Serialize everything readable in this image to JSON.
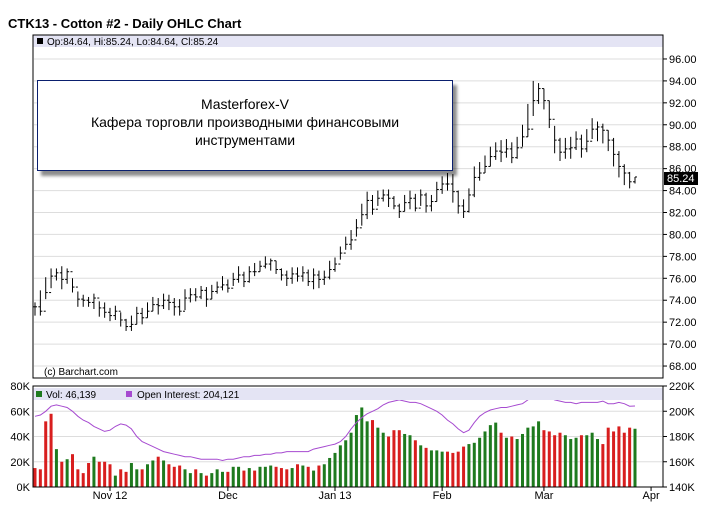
{
  "header": {
    "title": "CTK13 - Cotton #2 - Daily OHLC Chart",
    "ohlc_label": "Op:84.64, Hi:85.24, Lo:84.64, Cl:85.24",
    "last_price": "85.24"
  },
  "watermark": {
    "line1": "Masterforex-V",
    "line2": "Кафера торговли производными финансовыми",
    "line3": "инструментами"
  },
  "credit": "(c) Barchart.com",
  "lower_panel": {
    "volume_label": "Vol: 46,139",
    "oi_label": "Open Interest: 204,121"
  },
  "colors": {
    "header_bg": "#e4e4f4",
    "grid": "#dddddd",
    "up_volume": "#1e7a1e",
    "down_volume": "#d81e1e",
    "open_interest": "#a64ad0",
    "last_price_box": "#000000",
    "note_border": "#0a1f6e"
  },
  "chart_data": [
    {
      "type": "ohlc",
      "title": "CTK13 - Cotton #2 - Daily OHLC Chart",
      "ylim": [
        67,
        97
      ],
      "y_ticks": [
        "68.00",
        "70.00",
        "72.00",
        "74.00",
        "76.00",
        "78.00",
        "80.00",
        "82.00",
        "84.00",
        "86.00",
        "88.00",
        "90.00",
        "92.00",
        "94.00",
        "96.00"
      ],
      "x_ticks": [
        {
          "label": "Nov 12",
          "index": 14
        },
        {
          "label": "Dec",
          "index": 36
        },
        {
          "label": "Jan 13",
          "index": 56
        },
        {
          "label": "Feb",
          "index": 76
        },
        {
          "label": "Mar",
          "index": 95
        },
        {
          "label": "Apr",
          "index": 115
        }
      ],
      "close": [
        73.4,
        73.0,
        74.7,
        76.2,
        76.5,
        75.9,
        76.6,
        75.2,
        74.1,
        74.0,
        73.8,
        74.2,
        73.3,
        72.9,
        72.6,
        73.0,
        72.2,
        71.6,
        71.8,
        72.8,
        72.4,
        73.0,
        73.6,
        73.5,
        74.0,
        73.8,
        73.4,
        73.0,
        74.2,
        74.5,
        74.3,
        74.9,
        74.1,
        74.8,
        75.2,
        75.4,
        75.1,
        75.9,
        76.3,
        75.7,
        76.6,
        76.6,
        77.1,
        77.3,
        77.6,
        76.8,
        76.3,
        76.0,
        76.4,
        76.2,
        76.5,
        75.7,
        76.3,
        75.9,
        76.1,
        76.8,
        77.3,
        78.3,
        79.1,
        79.5,
        80.6,
        81.8,
        83.1,
        82.3,
        83.3,
        83.6,
        83.3,
        82.6,
        82.1,
        82.9,
        83.3,
        82.4,
        83.6,
        82.6,
        83.0,
        84.1,
        84.6,
        84.6,
        83.9,
        82.6,
        82.1,
        83.6,
        85.2,
        85.6,
        86.2,
        87.1,
        87.6,
        87.5,
        87.8,
        87.0,
        87.9,
        88.9,
        89.6,
        92.2,
        93.3,
        92.2,
        90.5,
        88.6,
        87.5,
        87.8,
        87.9,
        88.7,
        87.8,
        88.5,
        89.6,
        89.8,
        89.5,
        88.6,
        87.3,
        86.2,
        85.6,
        84.8,
        85.24
      ],
      "high": [
        73.8,
        74.9,
        76.1,
        76.9,
        76.9,
        77.1,
        76.9,
        76.0,
        74.8,
        74.5,
        74.3,
        74.6,
        73.9,
        73.8,
        73.3,
        73.5,
        72.9,
        72.3,
        72.6,
        73.4,
        73.3,
        73.8,
        74.3,
        74.2,
        74.6,
        74.5,
        74.2,
        74.1,
        75.0,
        75.1,
        75.1,
        75.3,
        75.2,
        75.4,
        75.7,
        76.2,
        75.9,
        76.5,
        77.1,
        76.6,
        77.1,
        77.4,
        77.6,
        78.0,
        77.8,
        77.6,
        76.9,
        76.7,
        77.0,
        77.0,
        77.1,
        76.8,
        76.9,
        76.7,
        76.7,
        77.6,
        77.9,
        78.9,
        79.8,
        80.4,
        81.4,
        82.8,
        83.9,
        83.6,
        84.0,
        84.1,
        84.1,
        83.5,
        82.8,
        83.6,
        84.0,
        83.7,
        84.1,
        83.8,
        83.6,
        84.8,
        85.3,
        85.6,
        85.5,
        84.0,
        83.2,
        84.2,
        86.2,
        86.6,
        87.2,
        88.0,
        88.4,
        88.6,
        88.7,
        88.4,
        88.9,
        90.0,
        91.9,
        94.0,
        93.8,
        93.3,
        92.2,
        89.9,
        88.8,
        88.8,
        88.9,
        89.4,
        89.1,
        89.6,
        90.6,
        90.3,
        90.1,
        89.5,
        88.8,
        87.6,
        86.4,
        85.7,
        85.24
      ],
      "low": [
        72.6,
        72.6,
        74.1,
        75.1,
        75.8,
        75.0,
        75.5,
        74.7,
        73.4,
        73.4,
        73.4,
        73.2,
        72.5,
        72.4,
        72.1,
        72.2,
        71.6,
        71.2,
        71.2,
        71.8,
        71.8,
        72.4,
        73.0,
        72.7,
        73.2,
        73.1,
        72.6,
        72.6,
        73.1,
        73.8,
        73.9,
        74.1,
        73.4,
        74.1,
        74.6,
        74.9,
        74.7,
        75.3,
        75.6,
        75.2,
        75.6,
        76.2,
        76.6,
        76.9,
        76.7,
        76.4,
        75.8,
        75.3,
        75.5,
        75.7,
        75.7,
        75.3,
        75.0,
        75.1,
        75.4,
        75.9,
        76.6,
        77.7,
        78.6,
        78.6,
        79.8,
        80.8,
        81.4,
        81.8,
        82.6,
        83.0,
        82.5,
        82.3,
        81.5,
        82.1,
        82.3,
        82.1,
        82.6,
        82.0,
        82.1,
        83.0,
        83.7,
        84.0,
        82.9,
        81.9,
        81.5,
        82.0,
        83.4,
        84.9,
        85.6,
        86.2,
        86.8,
        86.6,
        87.0,
        86.5,
        86.9,
        88.0,
        88.9,
        90.8,
        91.9,
        91.4,
        89.7,
        87.4,
        86.7,
        86.9,
        86.9,
        87.7,
        87.0,
        87.5,
        88.7,
        88.5,
        88.3,
        87.6,
        86.2,
        85.2,
        84.5,
        84.2,
        84.64
      ]
    },
    {
      "type": "bar",
      "name": "Vol",
      "ylim": [
        0,
        80000
      ],
      "y_ticks": [
        "0K",
        "20K",
        "40K",
        "60K",
        "80K"
      ],
      "values": [
        15000,
        14000,
        52000,
        58000,
        30000,
        20000,
        22000,
        26000,
        14000,
        11000,
        19000,
        24000,
        20000,
        20000,
        18000,
        9000,
        14000,
        12000,
        19000,
        14000,
        14000,
        18000,
        21000,
        24000,
        21000,
        18000,
        16000,
        17000,
        14000,
        11000,
        14000,
        11000,
        9000,
        11000,
        14000,
        12000,
        12000,
        16000,
        16000,
        13000,
        15000,
        13000,
        16000,
        16000,
        17000,
        16000,
        15000,
        14000,
        15000,
        18000,
        17000,
        16000,
        13000,
        17000,
        18000,
        23000,
        27000,
        33000,
        37000,
        43000,
        57000,
        63000,
        52000,
        53000,
        47000,
        43000,
        40000,
        45000,
        45000,
        42000,
        41000,
        37000,
        33000,
        31000,
        29000,
        29000,
        28000,
        28000,
        27000,
        28000,
        32000,
        34000,
        35000,
        39000,
        44000,
        49000,
        51000,
        43000,
        39000,
        40000,
        38000,
        42000,
        47000,
        48000,
        52000,
        45000,
        44000,
        41000,
        43000,
        41000,
        38000,
        39000,
        41000,
        41000,
        43000,
        38000,
        34000,
        47000,
        44000,
        48000,
        43000,
        47000,
        46139
      ],
      "up_volume": [
        false,
        false,
        false,
        false,
        true,
        false,
        true,
        false,
        false,
        false,
        false,
        true,
        false,
        false,
        false,
        true,
        false,
        false,
        true,
        true,
        false,
        true,
        true,
        false,
        true,
        false,
        false,
        false,
        true,
        true,
        false,
        true,
        false,
        true,
        true,
        true,
        false,
        true,
        true,
        false,
        true,
        false,
        true,
        true,
        true,
        false,
        false,
        false,
        true,
        false,
        true,
        false,
        true,
        false,
        true,
        true,
        true,
        true,
        true,
        true,
        true,
        true,
        true,
        false,
        true,
        true,
        false,
        false,
        false,
        true,
        true,
        false,
        true,
        false,
        true,
        true,
        true,
        false,
        false,
        false,
        false,
        true,
        true,
        true,
        true,
        true,
        true,
        false,
        true,
        false,
        true,
        true,
        true,
        true,
        true,
        false,
        false,
        false,
        false,
        true,
        true,
        true,
        false,
        true,
        true,
        true,
        false,
        false,
        false,
        false,
        false,
        false,
        true
      ]
    },
    {
      "type": "line",
      "name": "Open Interest",
      "ylim": [
        140000,
        220000
      ],
      "y_ticks": [
        "140K",
        "160K",
        "180K",
        "200K",
        "220K"
      ],
      "values": [
        196000,
        197000,
        200000,
        204000,
        205000,
        204000,
        203000,
        200000,
        196000,
        193000,
        191000,
        188000,
        186000,
        184000,
        185000,
        188000,
        190000,
        189000,
        186000,
        180000,
        176000,
        174000,
        172000,
        170000,
        168000,
        167000,
        166000,
        165000,
        164000,
        164000,
        163000,
        162000,
        162000,
        162000,
        162000,
        161000,
        162000,
        162000,
        163000,
        164000,
        164000,
        165000,
        165000,
        166000,
        166000,
        167000,
        167000,
        168000,
        168000,
        168000,
        168000,
        168000,
        170000,
        171000,
        172000,
        173000,
        174000,
        176000,
        180000,
        186000,
        191000,
        195000,
        198000,
        200000,
        202000,
        205000,
        207000,
        208000,
        209000,
        208000,
        207000,
        207000,
        206000,
        204000,
        202000,
        200000,
        197000,
        193000,
        190000,
        186000,
        183000,
        185000,
        191000,
        196000,
        199000,
        201000,
        202000,
        203000,
        203000,
        204000,
        205000,
        206000,
        209000,
        212000,
        213000,
        213000,
        211000,
        209000,
        208000,
        207000,
        207000,
        206000,
        207000,
        207000,
        207000,
        207000,
        208000,
        206000,
        206000,
        207000,
        206000,
        204000,
        204121
      ]
    }
  ]
}
